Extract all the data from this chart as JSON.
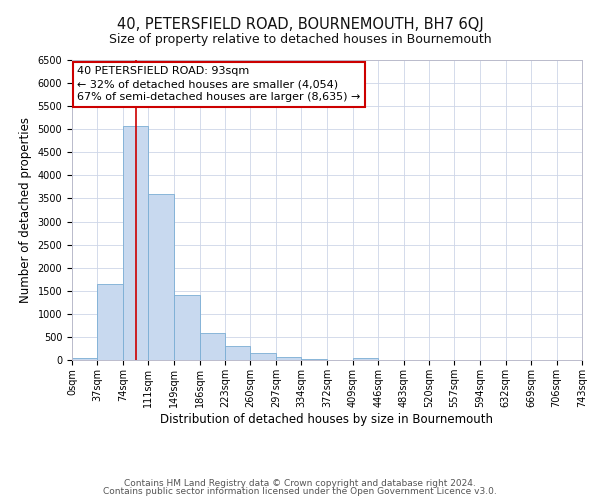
{
  "title": "40, PETERSFIELD ROAD, BOURNEMOUTH, BH7 6QJ",
  "subtitle": "Size of property relative to detached houses in Bournemouth",
  "xlabel": "Distribution of detached houses by size in Bournemouth",
  "ylabel": "Number of detached properties",
  "bin_edges": [
    0,
    37,
    74,
    111,
    149,
    186,
    223,
    260,
    297,
    334,
    372,
    409,
    446,
    483,
    520,
    557,
    594,
    632,
    669,
    706,
    743
  ],
  "bin_labels": [
    "0sqm",
    "37sqm",
    "74sqm",
    "111sqm",
    "149sqm",
    "186sqm",
    "223sqm",
    "260sqm",
    "297sqm",
    "334sqm",
    "372sqm",
    "409sqm",
    "446sqm",
    "483sqm",
    "520sqm",
    "557sqm",
    "594sqm",
    "632sqm",
    "669sqm",
    "706sqm",
    "743sqm"
  ],
  "bar_heights": [
    50,
    1650,
    5080,
    3600,
    1400,
    590,
    305,
    150,
    75,
    20,
    10,
    50,
    0,
    0,
    0,
    0,
    0,
    0,
    0,
    0
  ],
  "bar_color": "#c8d9ef",
  "bar_edge_color": "#7aadd4",
  "property_size": 93,
  "property_line_color": "#cc0000",
  "annotation_line1": "40 PETERSFIELD ROAD: 93sqm",
  "annotation_line2": "← 32% of detached houses are smaller (4,054)",
  "annotation_line3": "67% of semi-detached houses are larger (8,635) →",
  "annotation_box_color": "#ffffff",
  "annotation_box_edge_color": "#cc0000",
  "ylim": [
    0,
    6500
  ],
  "yticks": [
    0,
    500,
    1000,
    1500,
    2000,
    2500,
    3000,
    3500,
    4000,
    4500,
    5000,
    5500,
    6000,
    6500
  ],
  "footer_line1": "Contains HM Land Registry data © Crown copyright and database right 2024.",
  "footer_line2": "Contains public sector information licensed under the Open Government Licence v3.0.",
  "title_fontsize": 10.5,
  "subtitle_fontsize": 9,
  "axis_label_fontsize": 8.5,
  "tick_fontsize": 7,
  "annotation_fontsize": 8,
  "footer_fontsize": 6.5
}
